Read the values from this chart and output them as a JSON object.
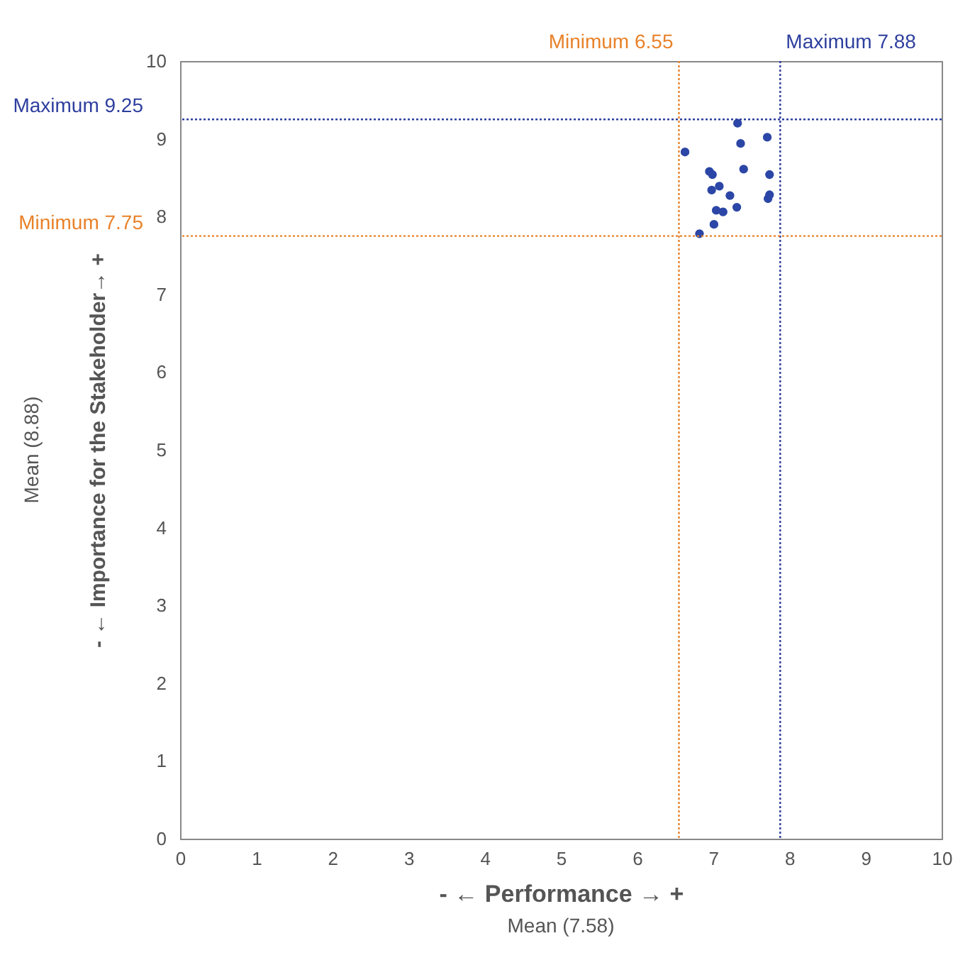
{
  "chart_data": {
    "type": "scatter",
    "xlabel": "- ← Performance → +",
    "ylabel": "- ← Importance for the Stakeholder→ +",
    "annotations": [
      "Mean (7.58)",
      "Mean (8.88)"
    ],
    "x": [
      7.32,
      7.71,
      7.36,
      6.63,
      6.95,
      6.99,
      7.4,
      7.74,
      7.08,
      6.98,
      7.22,
      7.74,
      7.72,
      7.04,
      7.13,
      7.31,
      7.01,
      6.82
    ],
    "values": [
      9.2,
      9.02,
      8.94,
      8.83,
      8.58,
      8.54,
      8.61,
      8.54,
      8.39,
      8.34,
      8.27,
      8.28,
      8.23,
      8.08,
      8.06,
      8.12,
      7.9,
      7.78
    ],
    "color": "#2b46a6",
    "xlim": [
      0,
      10
    ],
    "ylim": [
      0,
      10
    ],
    "xticks": [
      0,
      1,
      2,
      3,
      4,
      5,
      6,
      7,
      8,
      9,
      10
    ],
    "yticks": [
      0,
      1,
      2,
      3,
      4,
      5,
      6,
      7,
      8,
      9,
      10
    ],
    "ref_lines": [
      {
        "axis": "x",
        "value": 6.55,
        "label": "Minimum 6.55",
        "color": "#e8822a",
        "line_style": "dotted"
      },
      {
        "axis": "x",
        "value": 7.88,
        "label": "Maximum 7.88",
        "color": "#2e3f9e",
        "line_style": "dotted"
      },
      {
        "axis": "y",
        "value": 9.25,
        "label": "Maximum 9.25",
        "color": "#2e3f9e",
        "line_style": "dotted"
      },
      {
        "axis": "y",
        "value": 7.75,
        "label": "Minimum 7.75",
        "color": "#e8822a",
        "line_style": "dotted"
      }
    ]
  }
}
